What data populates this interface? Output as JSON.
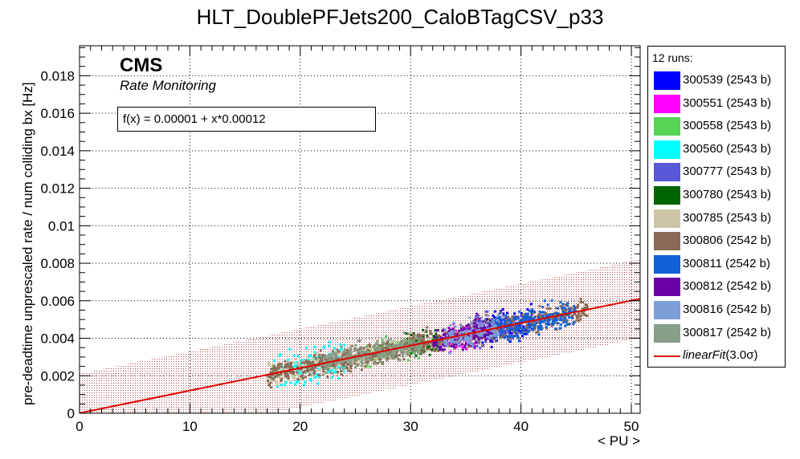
{
  "chart_data": {
    "type": "scatter",
    "title": "HLT_DoublePFJets200_CaloBTagCSV_p33",
    "xlabel": "< PU >",
    "ylabel": "pre-deadtime unprescaled rate / num colliding bx [Hz]",
    "xlim": [
      0,
      50.8
    ],
    "ylim": [
      0,
      0.0196
    ],
    "x_ticks": [
      "0",
      "10",
      "20",
      "30",
      "40",
      "50"
    ],
    "y_ticks": [
      "0",
      "0.002",
      "0.004",
      "0.006",
      "0.008",
      "0.01",
      "0.012",
      "0.014",
      "0.016",
      "0.018"
    ],
    "grid": true,
    "legend_position": "right",
    "legend_header": "12 runs:",
    "cms_label": "CMS",
    "cms_sublabel": "Rate Monitoring",
    "fit": {
      "label": "f(x) = 0.00001 + x*0.00012",
      "intercept": 1e-05,
      "slope": 0.00012,
      "band_halfwidth": 0.0021,
      "color": "#e00000",
      "legend_name": "linearFit",
      "legend_suffix": "(3.0σ)"
    },
    "series": [
      {
        "name": "300539 (2543 b)",
        "color": "#0000ff",
        "x_range": [
          36,
          41
        ],
        "y_noise": 0.0007
      },
      {
        "name": "300551 (2543 b)",
        "color": "#ff00ff",
        "x_range": [
          33.5,
          36
        ],
        "y_noise": 0.0006
      },
      {
        "name": "300558 (2543 b)",
        "color": "#55d455",
        "x_range": [
          26,
          31
        ],
        "y_noise": 0.0005
      },
      {
        "name": "300560 (2543 b)",
        "color": "#00ffff",
        "x_range": [
          17.5,
          24
        ],
        "y_noise": 0.0008
      },
      {
        "name": "300777 (2543 b)",
        "color": "#5858d8",
        "x_range": [
          35,
          39.5
        ],
        "y_noise": 0.0007
      },
      {
        "name": "300780 (2543 b)",
        "color": "#006400",
        "x_range": [
          29.5,
          32.5
        ],
        "y_noise": 0.0005
      },
      {
        "name": "300785 (2543 b)",
        "color": "#cbc5a6",
        "x_range": [
          17,
          30
        ],
        "y_noise": 0.0005
      },
      {
        "name": "300806 (2542 b)",
        "color": "#8a6a55",
        "x_range": [
          17,
          46
        ],
        "y_noise": 0.0005
      },
      {
        "name": "300811 (2542 b)",
        "color": "#1060d8",
        "x_range": [
          37,
          45
        ],
        "y_noise": 0.0006
      },
      {
        "name": "300812 (2542 b)",
        "color": "#6a00a8",
        "x_range": [
          32,
          37.5
        ],
        "y_noise": 0.0006
      },
      {
        "name": "300816 (2542 b)",
        "color": "#7e9ed8",
        "x_range": [
          33,
          38
        ],
        "y_noise": 0.0006
      },
      {
        "name": "300817 (2542 b)",
        "color": "#889e88",
        "x_range": [
          22,
          31
        ],
        "y_noise": 0.0005
      }
    ]
  }
}
